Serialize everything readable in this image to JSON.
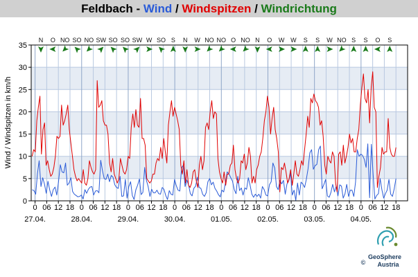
{
  "title": {
    "place": "Feldbach",
    "sep1": " - ",
    "wind": "Wind",
    "sep2": " / ",
    "gust": "Windspitzen",
    "sep3": " / ",
    "direction": "Windrichtung"
  },
  "colors": {
    "title_bar": "#d0d0d0",
    "wind": "#2a5bd7",
    "gust": "#e00000",
    "direction": "#1a7a1a",
    "band_light": "#ffffff",
    "band_dark": "#e6ecf4",
    "grid": "#b8c8e0"
  },
  "logo": {
    "name": "GeoSphere",
    "sub": "Austria",
    "copyright": "©"
  },
  "chart_data": {
    "type": "line",
    "title": "Feldbach - Wind / Windspitzen / Windrichtung",
    "ylabel": "Wind / Windspitzen in km/h",
    "xlabel": "",
    "ylim": [
      0,
      35
    ],
    "yticks": [
      0,
      5,
      10,
      15,
      20,
      25,
      30,
      35
    ],
    "xlim_hours": [
      -2,
      192
    ],
    "hour_ticks": [
      "06",
      "12",
      "18",
      "0"
    ],
    "date_labels": [
      "27.04.",
      "28.04.",
      "29.04.",
      "30.04.",
      "01.05.",
      "02.05.",
      "03.05.",
      "04.05."
    ],
    "grid": true,
    "directions": [
      "N",
      "O",
      "NO",
      "SO",
      "NO",
      "SW",
      "SO",
      "SO",
      "SW",
      "W",
      "SO",
      "S",
      "N",
      "W",
      "NO",
      "NO",
      "O",
      "NO",
      "N",
      "O",
      "W",
      "W",
      "S",
      "S",
      "W",
      "NO",
      "S",
      "S",
      "O",
      "S"
    ],
    "series": [
      {
        "name": "Wind",
        "values": [
          2.5,
          2.3,
          1.5,
          6.1,
          9.0,
          3.2,
          5.2,
          3.8,
          1.7,
          4.4,
          2.4,
          1.0,
          2.5,
          3.1,
          1.3,
          4.3,
          8.1,
          6.5,
          6.3,
          8.5,
          3.5,
          4.0,
          5.2,
          2.1,
          1.5,
          1.2,
          0.9,
          1.0,
          1.3,
          0.4,
          2.5,
          1.7,
          2.6,
          3.1,
          3.2,
          1.3,
          2.2,
          2.3,
          1.8,
          9.1,
          6.8,
          5.0,
          4.8,
          6.0,
          4.3,
          5.7,
          5.3,
          3.6,
          3.0,
          2.8,
          5.5,
          1.0,
          1.1,
          4.8,
          0.6,
          3.2,
          4.3,
          1.2,
          0.3,
          2.5,
          3.5,
          4.9,
          1.4,
          1.9,
          7.5,
          4.6,
          3.2,
          1.0,
          2.6,
          1.8,
          1.8,
          2.4,
          1.6,
          1.5,
          3.0,
          2.6,
          1.2,
          0.3,
          2.3,
          1.5,
          1.3,
          4.8,
          3.4,
          2.4,
          2.2,
          7.4,
          8.0,
          3.2,
          4.7,
          3.6,
          1.6,
          1.1,
          2.8,
          3.3,
          5.3,
          3.0,
          2.8,
          1.5,
          1.0,
          1.8,
          4.3,
          5.0,
          3.6,
          4.2,
          2.8,
          2.2,
          1.4,
          0.9,
          2.4,
          2.0,
          4.1,
          6.5,
          6.0,
          5.2,
          4.4,
          2.5,
          1.6,
          5.5,
          2.3,
          2.9,
          1.3,
          2.9,
          2.6,
          5.2,
          3.5,
          1.5,
          0.8,
          1.5,
          1.0,
          1.5,
          0.6,
          3.2,
          2.5,
          1.3,
          1.1,
          3.6,
          4.3,
          8.5,
          7.4,
          3.2,
          2.5,
          4.6,
          3.8,
          4.6,
          1.5,
          3.8,
          4.5,
          6.2,
          1.3,
          2.4,
          0.1,
          4.0,
          1.3,
          4.2,
          3.8,
          3.0,
          4.8,
          7.2,
          10.8,
          11.5,
          7.1,
          7.9,
          8.2,
          11.5,
          12.3,
          2.7,
          3.7,
          4.8,
          1.1,
          0.8,
          1.9,
          3.7,
          2.0,
          3.3,
          1.1,
          3.6,
          3.3,
          0.6,
          1.6,
          3.7,
          1.0,
          2.4,
          2.4,
          1.0,
          4.2,
          11.5,
          10.0,
          10.5,
          10.2,
          9.3,
          7.5,
          12.8,
          0.7,
          12.7,
          6.1,
          0.4,
          1.2,
          1.6,
          5.0,
          2.5,
          0.6,
          1.6,
          2.4,
          4.8,
          1.5,
          1.0,
          2.7,
          5.0
        ]
      },
      {
        "name": "Windspitzen",
        "values": [
          10,
          11.5,
          11,
          18,
          21,
          23.5,
          10.5,
          16,
          17.5,
          8,
          9,
          7,
          5.5,
          6,
          7.5,
          10,
          14.5,
          14,
          14.5,
          21.5,
          17,
          18,
          19.5,
          21.5,
          16,
          13,
          10,
          7,
          5.5,
          4.5,
          5,
          4.5,
          4,
          7,
          4,
          3.5,
          5,
          9,
          7.5,
          6.5,
          6,
          7,
          27,
          21,
          21.5,
          22.5,
          18,
          17,
          17,
          15,
          8.5,
          6.5,
          9.5,
          6,
          5,
          4,
          5,
          9.5,
          8,
          6.5,
          6,
          7,
          10,
          9.5,
          16.5,
          19.5,
          16.5,
          20.5,
          17,
          16.5,
          23,
          14,
          14,
          12.5,
          5,
          4.5,
          4,
          4.5,
          6,
          6,
          8.5,
          9.5,
          9,
          12,
          9.5,
          14,
          11,
          8.5,
          17,
          20,
          22.5,
          19,
          21,
          19.5,
          18,
          16,
          8,
          6,
          9,
          4,
          7,
          3.5,
          3,
          4,
          6.5,
          7,
          4.5,
          3,
          8,
          10,
          7,
          9,
          16.5,
          17.5,
          16,
          20,
          22.5,
          18.5,
          20,
          19.5,
          9.5,
          6.5,
          5,
          4,
          6.5,
          3.5,
          6,
          6,
          8,
          8.5,
          12.5,
          7,
          5,
          4,
          5,
          9,
          8.5,
          10.5,
          7,
          8.5,
          12,
          10,
          4,
          5.5,
          4,
          7,
          8,
          10,
          11,
          14,
          18,
          20,
          23.5,
          21,
          15,
          18.5,
          21,
          16,
          14,
          11,
          2,
          7.5,
          7,
          8.5,
          6.5,
          4,
          5,
          7,
          3.5,
          6,
          9,
          6,
          5.5,
          7,
          9,
          8,
          11.5,
          15,
          19,
          16.5,
          23,
          22,
          24,
          22.5,
          22,
          21,
          17,
          18,
          14.5,
          8,
          6,
          10,
          9,
          8.5,
          11,
          10,
          4,
          2,
          10.5,
          11,
          8,
          12.5,
          8.5,
          10,
          12,
          15,
          13,
          14,
          11,
          11,
          14,
          16,
          21.5,
          25.5,
          28.5,
          23,
          22,
          25,
          17.5,
          25.5,
          29,
          21,
          20,
          3,
          5.5,
          7.5,
          12,
          10.5,
          11,
          11,
          18.5,
          12,
          10.5,
          10,
          10,
          12
        ]
      }
    ]
  }
}
